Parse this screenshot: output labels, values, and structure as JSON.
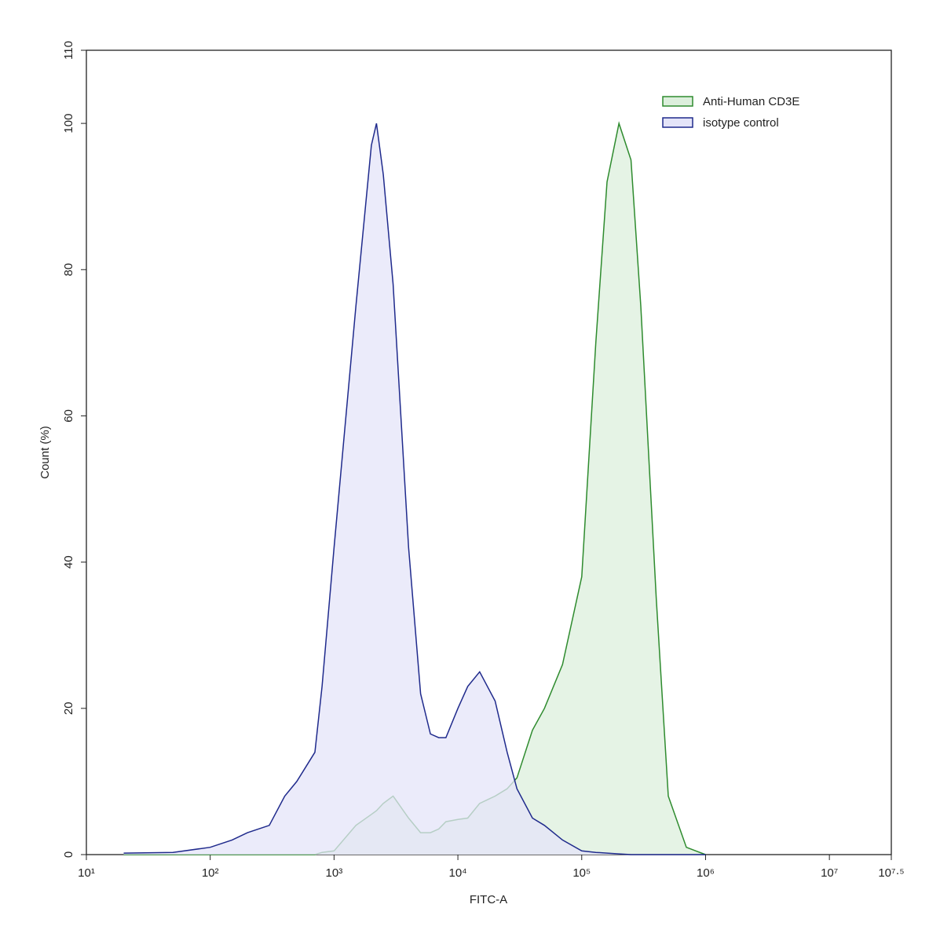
{
  "chart_data": {
    "type": "histogram-overlay",
    "xlabel": "FITC-A",
    "ylabel": "Count (%)",
    "xlog": true,
    "xlim": [
      10,
      31622776.6
    ],
    "xticks": [
      {
        "value": 10,
        "label": "10¹"
      },
      {
        "value": 100,
        "label": "10²"
      },
      {
        "value": 1000,
        "label": "10³"
      },
      {
        "value": 10000,
        "label": "10⁴"
      },
      {
        "value": 100000,
        "label": "10⁵"
      },
      {
        "value": 1000000,
        "label": "10⁶"
      },
      {
        "value": 10000000,
        "label": "10⁷"
      },
      {
        "value": 31622776.6,
        "label": "10⁷·⁵"
      }
    ],
    "ylim": [
      0,
      110
    ],
    "yticks": [
      0,
      20,
      40,
      60,
      80,
      100,
      110
    ],
    "legend": "top-right",
    "x": [
      20,
      50,
      100,
      150,
      200,
      300,
      400,
      500,
      700,
      800,
      1000,
      1500,
      2000,
      2200,
      2500,
      3000,
      4000,
      5000,
      6000,
      7000,
      8000,
      10000,
      12000,
      15000,
      20000,
      25000,
      30000,
      40000,
      50000,
      70000,
      100000,
      130000,
      160000,
      200000,
      250000,
      300000,
      400000,
      500000,
      700000,
      1000000
    ],
    "series": [
      {
        "name": "Anti-Human CD3E",
        "color": "#2e8b2e",
        "fill": "#dcefdc",
        "values": [
          0,
          0,
          0,
          0,
          0,
          0,
          0,
          0,
          0,
          0.3,
          0.5,
          4,
          5.5,
          6,
          7,
          8,
          5,
          3,
          3,
          3.5,
          4.5,
          4.8,
          5,
          7,
          8,
          9,
          10.5,
          17,
          20,
          26,
          38,
          70,
          92,
          100,
          95,
          75,
          35,
          8,
          1,
          0
        ]
      },
      {
        "name": "isotype control",
        "color": "#1f2a8c",
        "fill": "#e4e4f8",
        "values": [
          0.2,
          0.3,
          1,
          2,
          3,
          4,
          8,
          10,
          14,
          23,
          42,
          75,
          97,
          100,
          93,
          78,
          42,
          22,
          16.5,
          16,
          16,
          20,
          23,
          25,
          21,
          14,
          9,
          5,
          4,
          2,
          0.5,
          0.3,
          0.2,
          0.1,
          0,
          0,
          0,
          0,
          0,
          0
        ]
      }
    ]
  }
}
